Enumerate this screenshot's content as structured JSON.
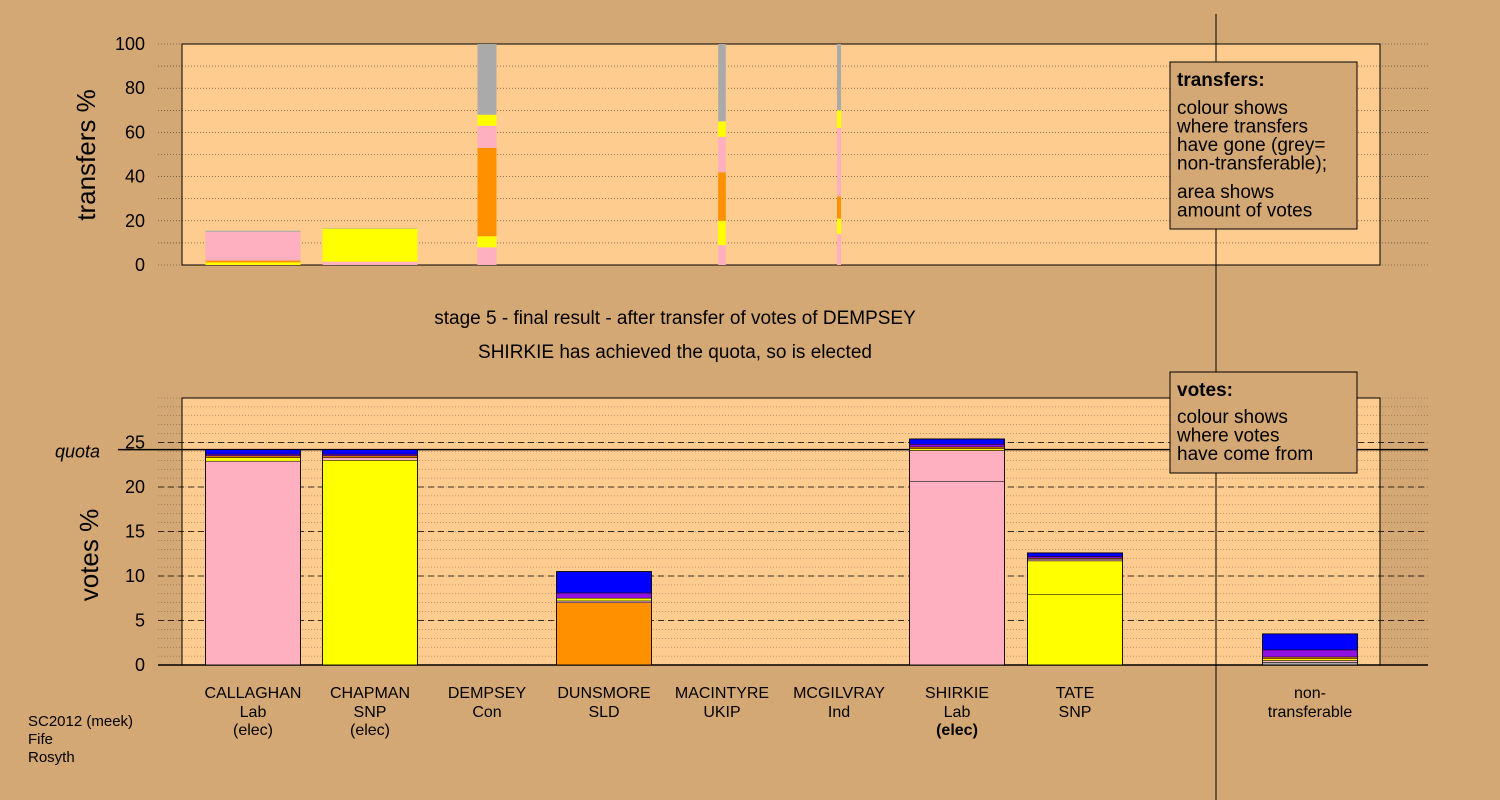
{
  "colors": {
    "background": "#d4a874",
    "panel": "#ffcc90",
    "Lab": "#ffb0c0",
    "SNP": "#ffff00",
    "Con": "#0000ff",
    "SLD": "#ff9000",
    "UKIP": "#9010e0",
    "Ind": "#ff99cc",
    "grey": "#aaaaaa",
    "dark_divider": "#000000"
  },
  "stage_title": "stage 5 - final result - after transfer of votes of DEMPSEY",
  "stage_subtitle": "SHIRKIE has achieved the quota, so is elected",
  "footer": [
    "SC2012 (meek)",
    "Fife",
    "Rosyth"
  ],
  "legend_transfers": {
    "title": "transfers:",
    "lines1": [
      "colour shows",
      "where transfers",
      "have gone (grey=",
      "non-transferable);"
    ],
    "lines2": [
      "area shows",
      "amount of votes"
    ]
  },
  "legend_votes": {
    "title": "votes:",
    "lines": [
      "colour shows",
      "where votes",
      "have come from"
    ]
  },
  "chart_data": [
    {
      "type": "bar",
      "ylabel": "transfers %",
      "ylim": [
        0,
        100
      ],
      "yticks": [
        0,
        20,
        40,
        60,
        80,
        100
      ],
      "categories": [
        "CALLAGHAN",
        "CHAPMAN",
        "DEMPSEY",
        "DUNSMORE",
        "MACINTYRE",
        "MCGILVRAY",
        "SHIRKIE",
        "TATE"
      ],
      "bars": [
        {
          "candidate": "CALLAGHAN",
          "width_share": 1.0,
          "segments": [
            {
              "color": "SNP",
              "value": 1.2
            },
            {
              "color": "SLD",
              "value": 0.8
            },
            {
              "color": "Lab",
              "value": 13.0
            },
            {
              "color": "grey",
              "value": 0.5
            }
          ]
        },
        {
          "candidate": "CHAPMAN",
          "width_share": 1.0,
          "segments": [
            {
              "color": "Lab",
              "value": 1.5
            },
            {
              "color": "SNP",
              "value": 15.0
            },
            {
              "color": "grey",
              "value": 0.3
            }
          ]
        },
        {
          "candidate": "DEMPSEY",
          "width_share": 0.2,
          "segments": [
            {
              "color": "Lab",
              "value": 8
            },
            {
              "color": "SNP",
              "value": 5
            },
            {
              "color": "SLD",
              "value": 40
            },
            {
              "color": "Lab",
              "value": 10
            },
            {
              "color": "SNP",
              "value": 5
            },
            {
              "color": "grey",
              "value": 32
            }
          ]
        },
        {
          "candidate": "MACINTYRE",
          "width_share": 0.08,
          "segments": [
            {
              "color": "Lab",
              "value": 9
            },
            {
              "color": "SNP",
              "value": 11
            },
            {
              "color": "SLD",
              "value": 22
            },
            {
              "color": "Lab",
              "value": 16
            },
            {
              "color": "SNP",
              "value": 7
            },
            {
              "color": "grey",
              "value": 35
            }
          ]
        },
        {
          "candidate": "MCGILVRAY",
          "width_share": 0.04,
          "segments": [
            {
              "color": "Lab",
              "value": 14
            },
            {
              "color": "SNP",
              "value": 7
            },
            {
              "color": "SLD",
              "value": 10
            },
            {
              "color": "Lab",
              "value": 31
            },
            {
              "color": "SNP",
              "value": 8
            },
            {
              "color": "grey",
              "value": 30
            }
          ]
        }
      ]
    },
    {
      "type": "bar",
      "ylabel": "votes %",
      "ylim": [
        0,
        30
      ],
      "yticks": [
        0,
        5,
        10,
        15,
        20,
        25
      ],
      "quota_label": "quota",
      "quota": 24.2,
      "categories": [
        "CALLAGHAN",
        "CHAPMAN",
        "DEMPSEY",
        "DUNSMORE",
        "MACINTYRE",
        "MCGILVRAY",
        "SHIRKIE",
        "TATE",
        "non-transferable"
      ],
      "candidates": [
        {
          "name": "CALLAGHAN",
          "party": "Lab",
          "status": "(elec)",
          "bold_status": false,
          "segments": [
            {
              "color": "Lab",
              "value": 22.9
            },
            {
              "color": "SNP",
              "value": 0.4
            },
            {
              "color": "SLD",
              "value": 0.2
            },
            {
              "color": "UKIP",
              "value": 0.2
            },
            {
              "color": "Con",
              "value": 0.5
            }
          ]
        },
        {
          "name": "CHAPMAN",
          "party": "SNP",
          "status": "(elec)",
          "bold_status": false,
          "segments": [
            {
              "color": "SNP",
              "value": 23.0
            },
            {
              "color": "Lab",
              "value": 0.3
            },
            {
              "color": "SLD",
              "value": 0.2
            },
            {
              "color": "UKIP",
              "value": 0.2
            },
            {
              "color": "Con",
              "value": 0.5
            }
          ]
        },
        {
          "name": "DEMPSEY",
          "party": "Con",
          "status": "",
          "bold_status": false,
          "segments": []
        },
        {
          "name": "DUNSMORE",
          "party": "SLD",
          "status": "",
          "bold_status": false,
          "segments": [
            {
              "color": "SLD",
              "value": 7.0
            },
            {
              "color": "Lab",
              "value": 0.2
            },
            {
              "color": "SNP",
              "value": 0.3
            },
            {
              "color": "UKIP",
              "value": 0.6
            },
            {
              "color": "Con",
              "value": 2.4
            }
          ]
        },
        {
          "name": "MACINTYRE",
          "party": "UKIP",
          "status": "",
          "bold_status": false,
          "segments": []
        },
        {
          "name": "MCGILVRAY",
          "party": "Ind",
          "status": "",
          "bold_status": false,
          "segments": []
        },
        {
          "name": "SHIRKIE",
          "party": "Lab",
          "status": "(elec)",
          "bold_status": true,
          "segments": [
            {
              "color": "Lab",
              "value": 20.6
            },
            {
              "color": "Lab",
              "value": 3.5
            },
            {
              "color": "SNP",
              "value": 0.2
            },
            {
              "color": "SLD",
              "value": 0.2
            },
            {
              "color": "UKIP",
              "value": 0.3
            },
            {
              "color": "Con",
              "value": 0.6
            }
          ]
        },
        {
          "name": "TATE",
          "party": "SNP",
          "status": "",
          "bold_status": false,
          "segments": [
            {
              "color": "SNP",
              "value": 7.9
            },
            {
              "color": "SNP",
              "value": 3.8
            },
            {
              "color": "Lab",
              "value": 0.2
            },
            {
              "color": "SLD",
              "value": 0.1
            },
            {
              "color": "UKIP",
              "value": 0.2
            },
            {
              "color": "Con",
              "value": 0.4
            }
          ]
        },
        {
          "name": "non-",
          "party": "transferable",
          "status": "",
          "bold_status": false,
          "segments": [
            {
              "color": "grey",
              "value": 0.3
            },
            {
              "color": "Lab",
              "value": 0.2
            },
            {
              "color": "SNP",
              "value": 0.2
            },
            {
              "color": "SLD",
              "value": 0.2
            },
            {
              "color": "UKIP",
              "value": 0.8
            },
            {
              "color": "Con",
              "value": 1.8
            }
          ]
        }
      ]
    }
  ]
}
